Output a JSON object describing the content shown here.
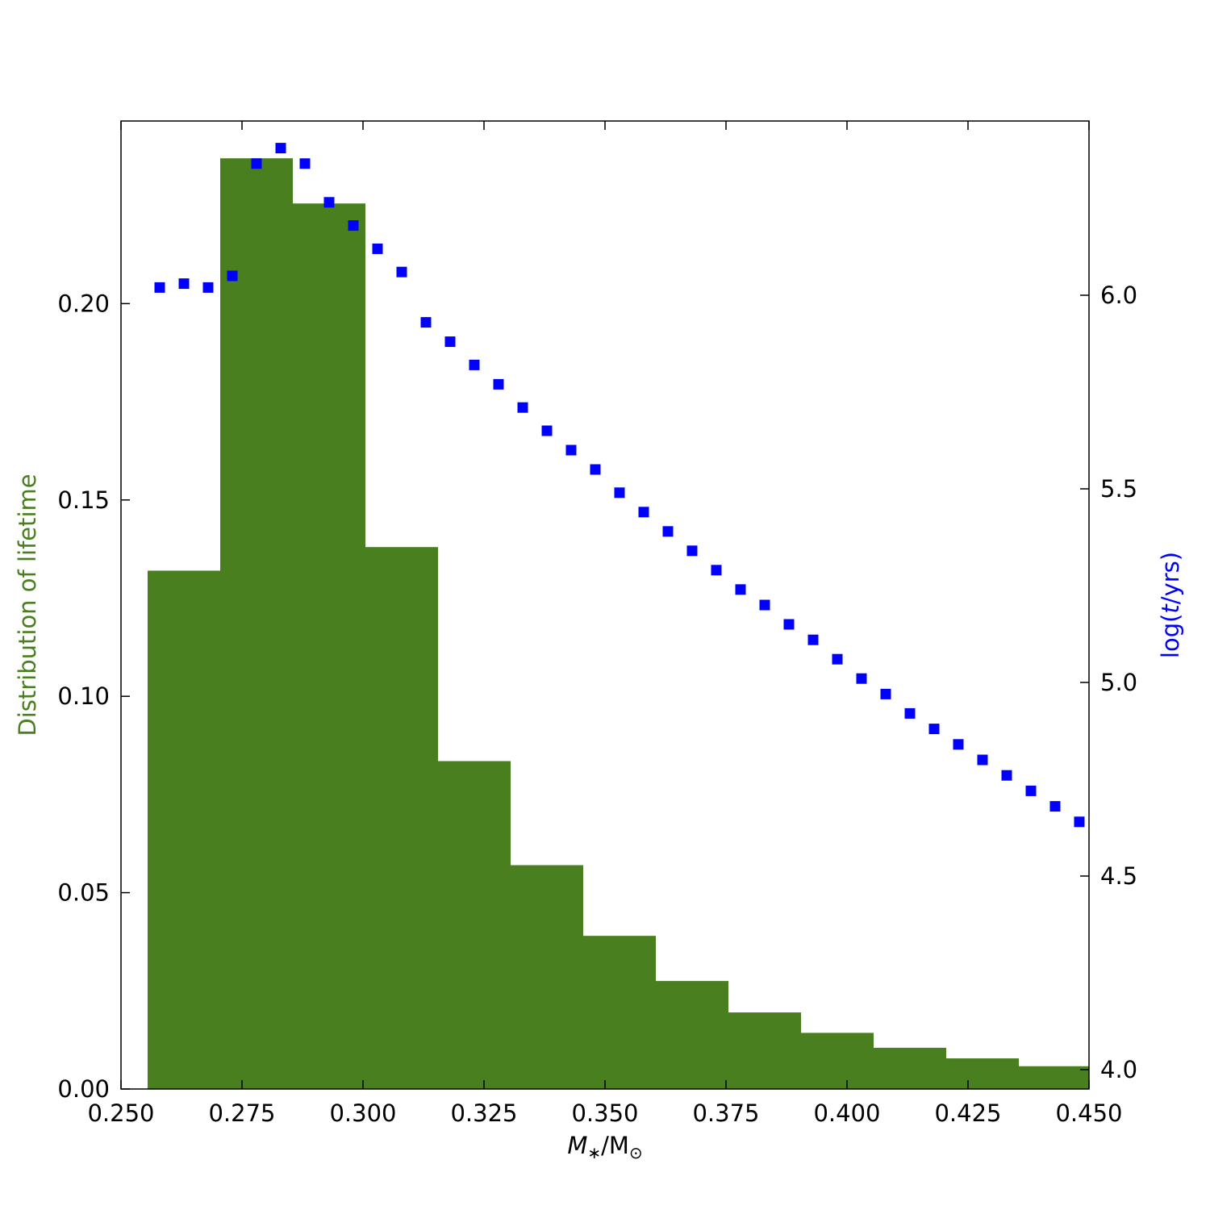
{
  "chart_data": {
    "type": "bar",
    "title": "",
    "xlabel": "M∗/M⊙",
    "ylabel_left": "Distribution of lifetime",
    "ylabel_right": "log(t/yrs)",
    "xlim": [
      0.25,
      0.45
    ],
    "ylim_left": [
      0.0,
      0.2465
    ],
    "ylim_right": [
      3.95,
      6.45
    ],
    "x_ticks": [
      {
        "value": 0.25,
        "label": "0.250"
      },
      {
        "value": 0.275,
        "label": "0.275"
      },
      {
        "value": 0.3,
        "label": "0.300"
      },
      {
        "value": 0.325,
        "label": "0.325"
      },
      {
        "value": 0.35,
        "label": "0.350"
      },
      {
        "value": 0.375,
        "label": "0.375"
      },
      {
        "value": 0.4,
        "label": "0.400"
      },
      {
        "value": 0.425,
        "label": "0.425"
      },
      {
        "value": 0.45,
        "label": "0.450"
      }
    ],
    "y_left_ticks": [
      {
        "value": 0.0,
        "label": "0.00"
      },
      {
        "value": 0.05,
        "label": "0.05"
      },
      {
        "value": 0.1,
        "label": "0.10"
      },
      {
        "value": 0.15,
        "label": "0.15"
      },
      {
        "value": 0.2,
        "label": "0.20"
      }
    ],
    "y_right_ticks": [
      {
        "value": 4.0,
        "label": "4.0"
      },
      {
        "value": 4.5,
        "label": "4.5"
      },
      {
        "value": 5.0,
        "label": "5.0"
      },
      {
        "value": 5.5,
        "label": "5.5"
      },
      {
        "value": 6.0,
        "label": "6.0"
      }
    ],
    "histogram": {
      "color": "#4a7f20",
      "bins": [
        {
          "x0": 0.2555,
          "x1": 0.2705,
          "value": 0.132
        },
        {
          "x0": 0.2705,
          "x1": 0.2855,
          "value": 0.237
        },
        {
          "x0": 0.2855,
          "x1": 0.3005,
          "value": 0.2255
        },
        {
          "x0": 0.3005,
          "x1": 0.3155,
          "value": 0.138
        },
        {
          "x0": 0.3155,
          "x1": 0.3305,
          "value": 0.0835
        },
        {
          "x0": 0.3305,
          "x1": 0.3455,
          "value": 0.057
        },
        {
          "x0": 0.3455,
          "x1": 0.3605,
          "value": 0.039
        },
        {
          "x0": 0.3605,
          "x1": 0.3755,
          "value": 0.0275
        },
        {
          "x0": 0.3755,
          "x1": 0.3905,
          "value": 0.0195
        },
        {
          "x0": 0.3905,
          "x1": 0.4055,
          "value": 0.0143
        },
        {
          "x0": 0.4055,
          "x1": 0.4205,
          "value": 0.0105
        },
        {
          "x0": 0.4205,
          "x1": 0.4355,
          "value": 0.0078
        },
        {
          "x0": 0.4355,
          "x1": 0.45,
          "value": 0.0058
        }
      ]
    },
    "scatter": {
      "color": "#0000ff",
      "marker": "square",
      "points": [
        {
          "x": 0.258,
          "y": 6.02
        },
        {
          "x": 0.263,
          "y": 6.03
        },
        {
          "x": 0.268,
          "y": 6.02
        },
        {
          "x": 0.273,
          "y": 6.05
        },
        {
          "x": 0.278,
          "y": 6.34
        },
        {
          "x": 0.283,
          "y": 6.38
        },
        {
          "x": 0.288,
          "y": 6.34
        },
        {
          "x": 0.293,
          "y": 6.24
        },
        {
          "x": 0.298,
          "y": 6.18
        },
        {
          "x": 0.303,
          "y": 6.12
        },
        {
          "x": 0.308,
          "y": 6.06
        },
        {
          "x": 0.313,
          "y": 5.93
        },
        {
          "x": 0.318,
          "y": 5.88
        },
        {
          "x": 0.323,
          "y": 5.82
        },
        {
          "x": 0.328,
          "y": 5.77
        },
        {
          "x": 0.333,
          "y": 5.71
        },
        {
          "x": 0.338,
          "y": 5.65
        },
        {
          "x": 0.343,
          "y": 5.6
        },
        {
          "x": 0.348,
          "y": 5.55
        },
        {
          "x": 0.353,
          "y": 5.49
        },
        {
          "x": 0.358,
          "y": 5.44
        },
        {
          "x": 0.363,
          "y": 5.39
        },
        {
          "x": 0.368,
          "y": 5.34
        },
        {
          "x": 0.373,
          "y": 5.29
        },
        {
          "x": 0.378,
          "y": 5.24
        },
        {
          "x": 0.383,
          "y": 5.2
        },
        {
          "x": 0.388,
          "y": 5.15
        },
        {
          "x": 0.393,
          "y": 5.11
        },
        {
          "x": 0.398,
          "y": 5.06
        },
        {
          "x": 0.403,
          "y": 5.01
        },
        {
          "x": 0.408,
          "y": 4.97
        },
        {
          "x": 0.413,
          "y": 4.92
        },
        {
          "x": 0.418,
          "y": 4.88
        },
        {
          "x": 0.423,
          "y": 4.84
        },
        {
          "x": 0.428,
          "y": 4.8
        },
        {
          "x": 0.433,
          "y": 4.76
        },
        {
          "x": 0.438,
          "y": 4.72
        },
        {
          "x": 0.443,
          "y": 4.68
        },
        {
          "x": 0.448,
          "y": 4.64
        }
      ]
    }
  }
}
